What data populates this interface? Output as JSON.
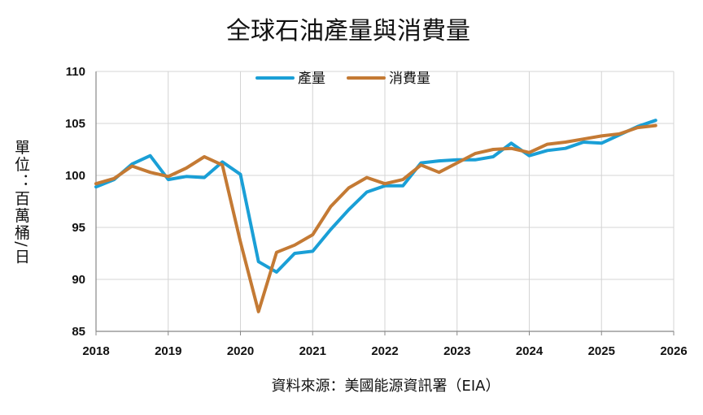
{
  "chart_data": {
    "type": "line",
    "title": "全球石油產量與消費量",
    "ylabel": "單位：百萬桶/日",
    "xlabel": "",
    "source": "資料來源：美國能源資訊署（EIA）",
    "xlim": [
      2018,
      2026
    ],
    "ylim": [
      85,
      110
    ],
    "x_ticks": [
      "2018",
      "2019",
      "2020",
      "2021",
      "2022",
      "2023",
      "2024",
      "2025",
      "2026"
    ],
    "y_ticks": [
      "85",
      "90",
      "95",
      "100",
      "105",
      "110"
    ],
    "grid": true,
    "legend_position": "top-center",
    "series": [
      {
        "name": "產量",
        "color": "#1a9fd6",
        "x": [
          2018.0,
          2018.25,
          2018.5,
          2018.75,
          2019.0,
          2019.25,
          2019.5,
          2019.75,
          2020.0,
          2020.25,
          2020.5,
          2020.75,
          2021.0,
          2021.25,
          2021.5,
          2021.75,
          2022.0,
          2022.25,
          2022.5,
          2022.75,
          2023.0,
          2023.25,
          2023.5,
          2023.75,
          2024.0,
          2024.25,
          2024.5,
          2024.75,
          2025.0,
          2025.25,
          2025.5,
          2025.75
        ],
        "values": [
          98.9,
          99.6,
          101.1,
          101.9,
          99.6,
          99.9,
          99.8,
          101.3,
          100.1,
          91.7,
          90.7,
          92.5,
          92.7,
          94.8,
          96.7,
          98.4,
          99.0,
          99.0,
          101.2,
          101.4,
          101.5,
          101.5,
          101.8,
          103.1,
          101.9,
          102.4,
          102.6,
          103.2,
          103.1,
          103.9,
          104.7,
          105.3
        ]
      },
      {
        "name": "消費量",
        "color": "#c47a34",
        "x": [
          2018.0,
          2018.25,
          2018.5,
          2018.75,
          2019.0,
          2019.25,
          2019.5,
          2019.75,
          2020.0,
          2020.25,
          2020.5,
          2020.75,
          2021.0,
          2021.25,
          2021.5,
          2021.75,
          2022.0,
          2022.25,
          2022.5,
          2022.75,
          2023.0,
          2023.25,
          2023.5,
          2023.75,
          2024.0,
          2024.25,
          2024.5,
          2024.75,
          2025.0,
          2025.25,
          2025.5,
          2025.75
        ],
        "values": [
          99.2,
          99.7,
          100.9,
          100.3,
          99.9,
          100.7,
          101.8,
          101.0,
          93.6,
          86.9,
          92.6,
          93.3,
          94.3,
          97.0,
          98.8,
          99.8,
          99.2,
          99.6,
          101.0,
          100.3,
          101.2,
          102.1,
          102.5,
          102.6,
          102.2,
          103.0,
          103.2,
          103.5,
          103.8,
          104.0,
          104.6,
          104.8
        ]
      }
    ]
  }
}
